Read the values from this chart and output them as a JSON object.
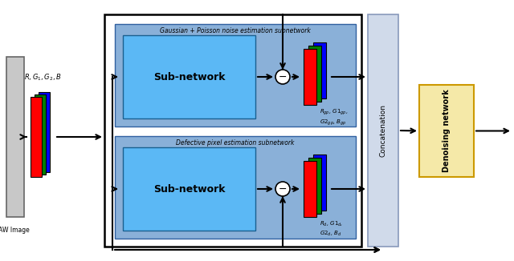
{
  "bg_color": "#ffffff",
  "raw_plate_color": "#c8c8c8",
  "subnetwork_bg": "#8ab0d8",
  "subnetwork_inner": "#5bb8f5",
  "concatenation_color": "#d0daea",
  "denoising_color": "#f5e9a8",
  "outer_box_color": "#000000",
  "title_top": "Gaussian + Poisson noise estimation subnetwork",
  "title_bottom": "Defective pixel estimation subnetwork",
  "subnetwork_label": "Sub-network",
  "concat_label": "Concatenation",
  "denoising_label": "Denoising network",
  "raw_label": "RAW Image",
  "channel_label": "R,G₁,G₂,B",
  "output_label_top_line1": "R",
  "output_label_top_line2": "gp",
  "output_label_bot_line1": "R",
  "output_label_bot_line2": "d"
}
